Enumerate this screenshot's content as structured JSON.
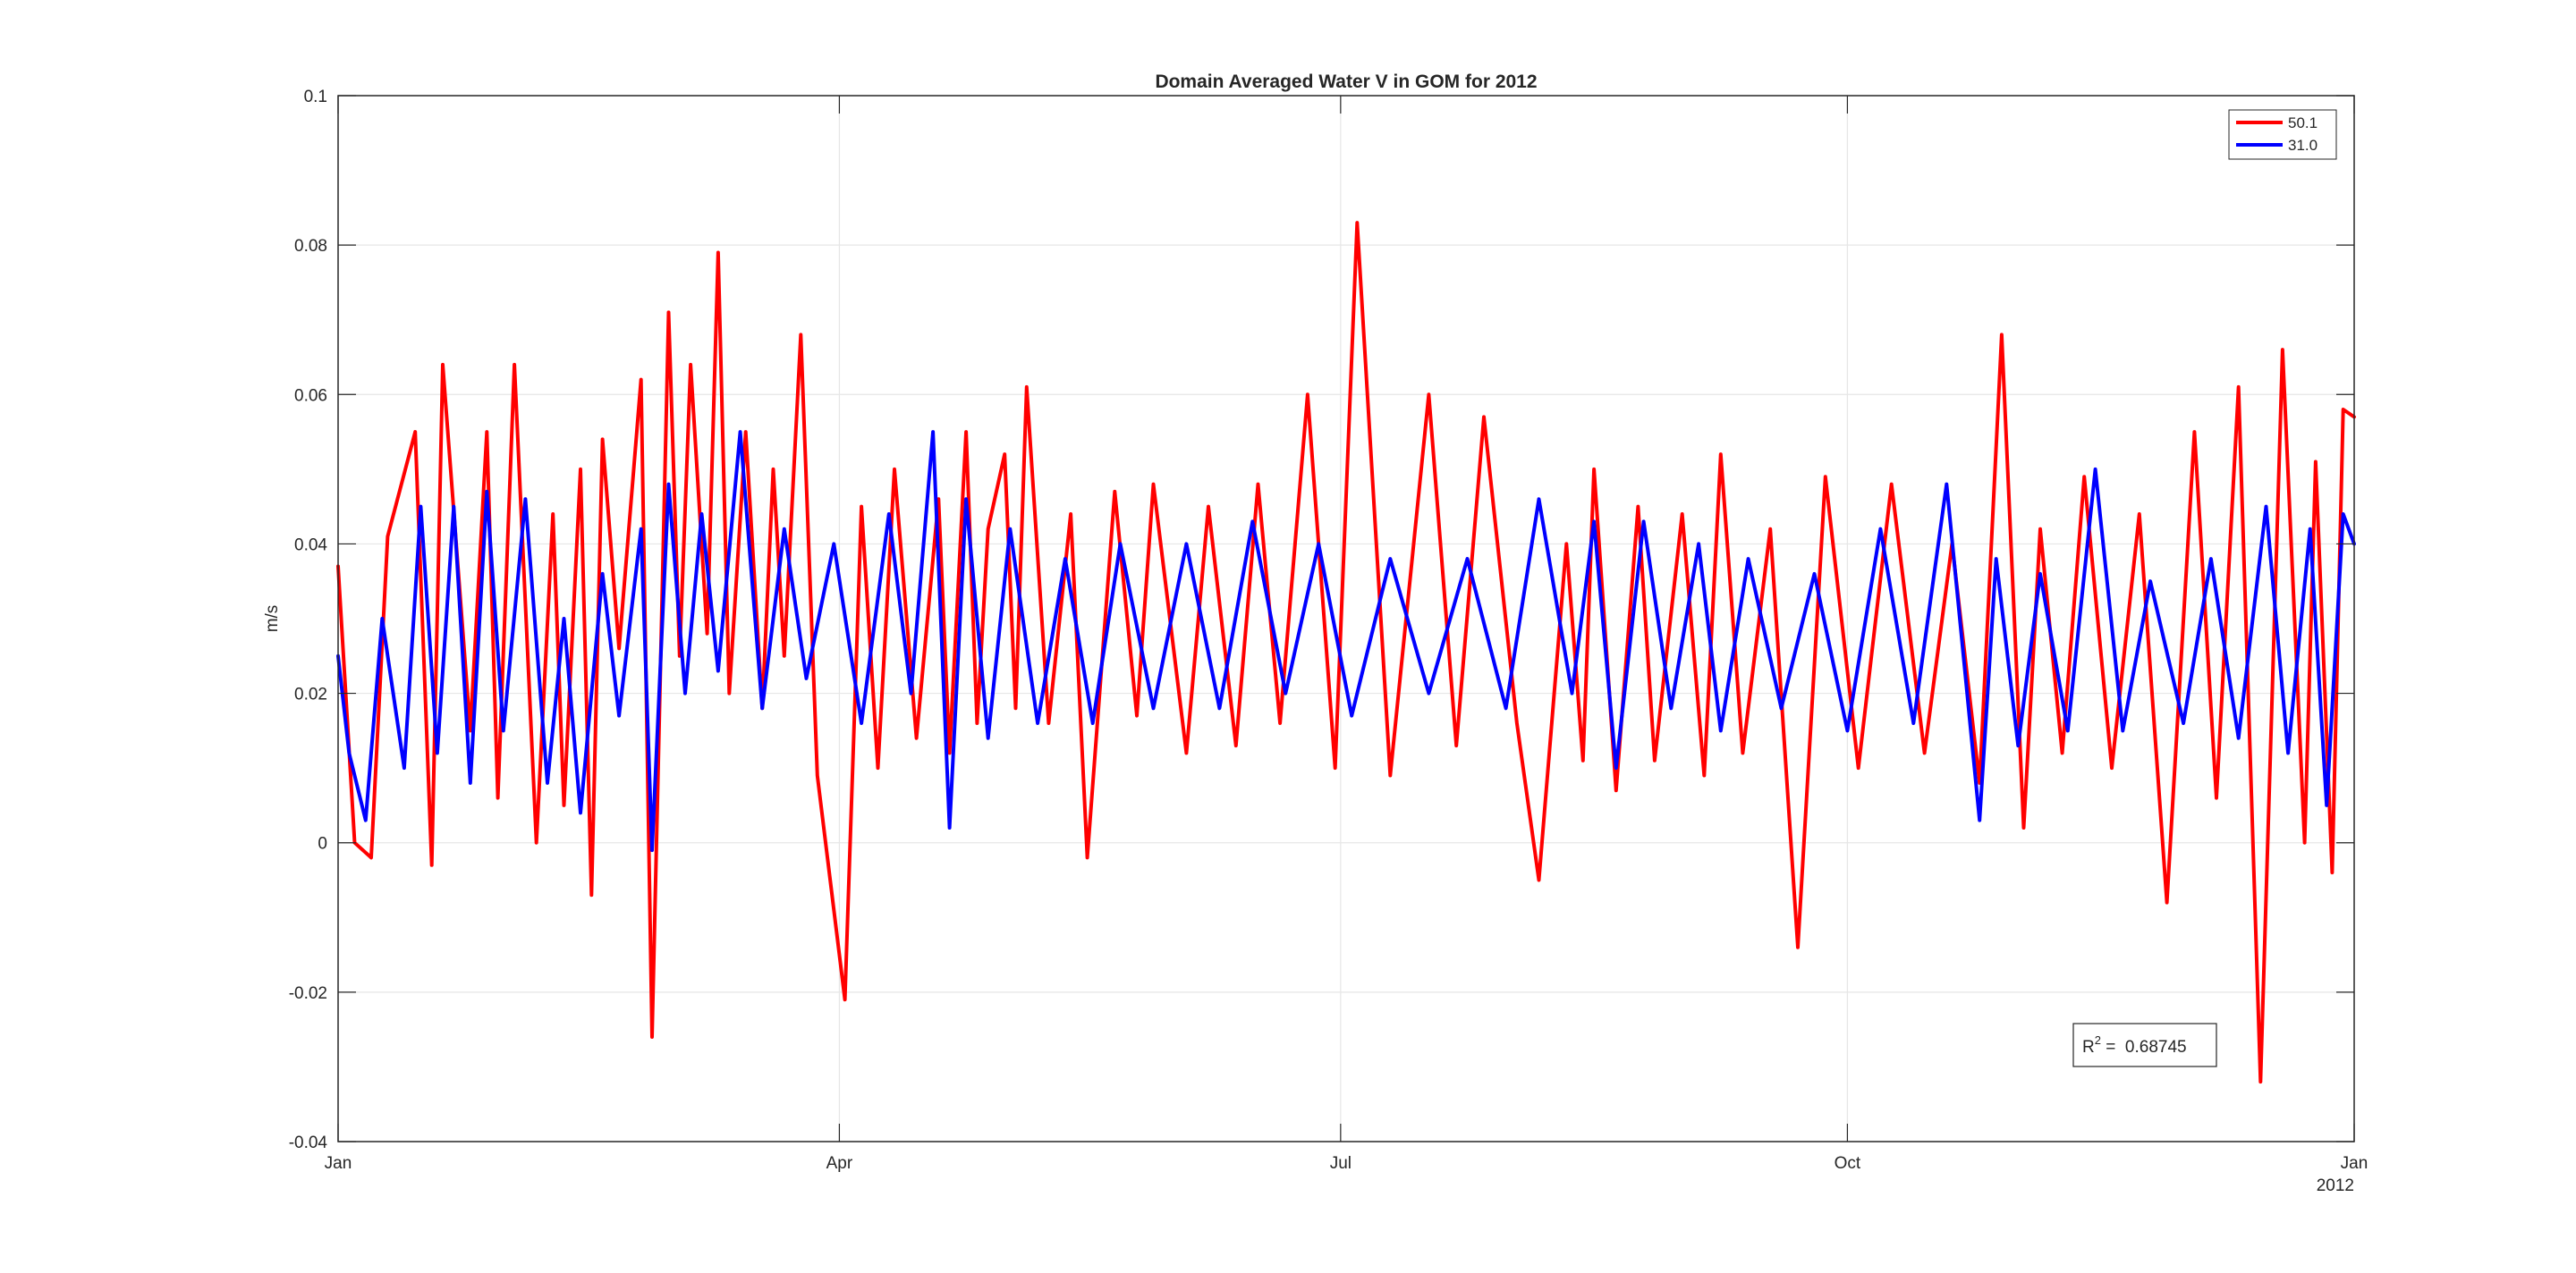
{
  "chart_data": {
    "type": "line",
    "title": "Domain Averaged Water V in GOM for 2012",
    "xlabel": "",
    "ylabel": "m/s",
    "x_start": "2012-01-01",
    "x_end": "2013-01-01",
    "xlim": [
      "2012-01-01",
      "2013-01-01"
    ],
    "ylim": [
      -0.04,
      0.1
    ],
    "yticks": [
      -0.04,
      -0.02,
      0,
      0.02,
      0.04,
      0.06,
      0.08,
      0.1
    ],
    "ytick_labels": [
      "-0.04",
      "-0.02",
      "0",
      "0.02",
      "0.04",
      "0.06",
      "0.08",
      "0.1"
    ],
    "xtick_labels": [
      "Jan",
      "Apr",
      "Jul",
      "Oct",
      "Jan"
    ],
    "xtick_dates": [
      "2012-01-01",
      "2012-04-01",
      "2012-07-01",
      "2012-10-01",
      "2013-01-01"
    ],
    "x_secondary_label": "2012",
    "grid": true,
    "legend_position": "top-right",
    "annotation": {
      "label": "R",
      "superscript": "2",
      "eq": " =  ",
      "value": "0.68745"
    },
    "series": [
      {
        "name": "50.1",
        "color": "#ff0000",
        "dates": [
          "2012-01-01",
          "2012-01-04",
          "2012-01-07",
          "2012-01-10",
          "2012-01-15",
          "2012-01-18",
          "2012-01-20",
          "2012-01-25",
          "2012-01-28",
          "2012-01-30",
          "2012-02-02",
          "2012-02-06",
          "2012-02-09",
          "2012-02-11",
          "2012-02-14",
          "2012-02-16",
          "2012-02-18",
          "2012-02-21",
          "2012-02-25",
          "2012-02-27",
          "2012-03-01",
          "2012-03-03",
          "2012-03-05",
          "2012-03-08",
          "2012-03-10",
          "2012-03-12",
          "2012-03-15",
          "2012-03-18",
          "2012-03-20",
          "2012-03-22",
          "2012-03-25",
          "2012-03-28",
          "2012-04-02",
          "2012-04-05",
          "2012-04-08",
          "2012-04-11",
          "2012-04-15",
          "2012-04-19",
          "2012-04-21",
          "2012-04-24",
          "2012-04-26",
          "2012-04-28",
          "2012-05-01",
          "2012-05-03",
          "2012-05-05",
          "2012-05-09",
          "2012-05-13",
          "2012-05-16",
          "2012-05-21",
          "2012-05-25",
          "2012-05-28",
          "2012-06-03",
          "2012-06-07",
          "2012-06-12",
          "2012-06-16",
          "2012-06-20",
          "2012-06-25",
          "2012-06-30",
          "2012-07-04",
          "2012-07-10",
          "2012-07-17",
          "2012-07-22",
          "2012-07-27",
          "2012-08-02",
          "2012-08-06",
          "2012-08-11",
          "2012-08-14",
          "2012-08-16",
          "2012-08-20",
          "2012-08-24",
          "2012-08-27",
          "2012-09-01",
          "2012-09-05",
          "2012-09-08",
          "2012-09-12",
          "2012-09-17",
          "2012-09-22",
          "2012-09-27",
          "2012-10-03",
          "2012-10-09",
          "2012-10-15",
          "2012-10-20",
          "2012-10-25",
          "2012-10-29",
          "2012-11-02",
          "2012-11-05",
          "2012-11-09",
          "2012-11-13",
          "2012-11-18",
          "2012-11-23",
          "2012-11-28",
          "2012-12-03",
          "2012-12-07",
          "2012-12-11",
          "2012-12-15",
          "2012-12-19",
          "2012-12-23",
          "2012-12-25",
          "2012-12-28",
          "2012-12-30",
          "2013-01-01"
        ],
        "values": [
          0.037,
          0.0,
          -0.002,
          0.041,
          0.055,
          -0.003,
          0.064,
          0.015,
          0.055,
          0.006,
          0.064,
          0.0,
          0.044,
          0.005,
          0.05,
          -0.007,
          0.054,
          0.026,
          0.062,
          -0.026,
          0.071,
          0.025,
          0.064,
          0.028,
          0.079,
          0.02,
          0.055,
          0.018,
          0.05,
          0.025,
          0.068,
          0.009,
          -0.021,
          0.045,
          0.01,
          0.05,
          0.014,
          0.046,
          0.012,
          0.055,
          0.016,
          0.042,
          0.052,
          0.018,
          0.061,
          0.016,
          0.044,
          -0.002,
          0.047,
          0.017,
          0.048,
          0.012,
          0.045,
          0.013,
          0.048,
          0.016,
          0.06,
          0.01,
          0.083,
          0.009,
          0.06,
          0.013,
          0.057,
          0.016,
          -0.005,
          0.04,
          0.011,
          0.05,
          0.007,
          0.045,
          0.011,
          0.044,
          0.009,
          0.052,
          0.012,
          0.042,
          -0.014,
          0.049,
          0.01,
          0.048,
          0.012,
          0.04,
          0.008,
          0.068,
          0.002,
          0.042,
          0.012,
          0.049,
          0.01,
          0.044,
          -0.008,
          0.055,
          0.006,
          0.061,
          -0.032,
          0.066,
          0.0,
          0.051,
          -0.004,
          0.058,
          0.057
        ]
      },
      {
        "name": "31.0",
        "color": "#0000ff",
        "dates": [
          "2012-01-01",
          "2012-01-03",
          "2012-01-06",
          "2012-01-09",
          "2012-01-13",
          "2012-01-16",
          "2012-01-19",
          "2012-01-22",
          "2012-01-25",
          "2012-01-28",
          "2012-01-31",
          "2012-02-04",
          "2012-02-08",
          "2012-02-11",
          "2012-02-14",
          "2012-02-18",
          "2012-02-21",
          "2012-02-25",
          "2012-02-27",
          "2012-03-01",
          "2012-03-04",
          "2012-03-07",
          "2012-03-10",
          "2012-03-14",
          "2012-03-18",
          "2012-03-22",
          "2012-03-26",
          "2012-03-31",
          "2012-04-05",
          "2012-04-10",
          "2012-04-14",
          "2012-04-18",
          "2012-04-21",
          "2012-04-24",
          "2012-04-28",
          "2012-05-02",
          "2012-05-07",
          "2012-05-12",
          "2012-05-17",
          "2012-05-22",
          "2012-05-28",
          "2012-06-03",
          "2012-06-09",
          "2012-06-15",
          "2012-06-21",
          "2012-06-27",
          "2012-07-03",
          "2012-07-10",
          "2012-07-17",
          "2012-07-24",
          "2012-07-31",
          "2012-08-06",
          "2012-08-12",
          "2012-08-16",
          "2012-08-20",
          "2012-08-25",
          "2012-08-30",
          "2012-09-04",
          "2012-09-08",
          "2012-09-13",
          "2012-09-19",
          "2012-09-25",
          "2012-10-01",
          "2012-10-07",
          "2012-10-13",
          "2012-10-19",
          "2012-10-25",
          "2012-10-28",
          "2012-11-01",
          "2012-11-05",
          "2012-11-10",
          "2012-11-15",
          "2012-11-20",
          "2012-11-25",
          "2012-12-01",
          "2012-12-06",
          "2012-12-11",
          "2012-12-16",
          "2012-12-20",
          "2012-12-24",
          "2012-12-27",
          "2012-12-30",
          "2013-01-01"
        ],
        "values": [
          0.025,
          0.012,
          0.003,
          0.03,
          0.01,
          0.045,
          0.012,
          0.045,
          0.008,
          0.047,
          0.015,
          0.046,
          0.008,
          0.03,
          0.004,
          0.036,
          0.017,
          0.042,
          -0.001,
          0.048,
          0.02,
          0.044,
          0.023,
          0.055,
          0.018,
          0.042,
          0.022,
          0.04,
          0.016,
          0.044,
          0.02,
          0.055,
          0.002,
          0.046,
          0.014,
          0.042,
          0.016,
          0.038,
          0.016,
          0.04,
          0.018,
          0.04,
          0.018,
          0.043,
          0.02,
          0.04,
          0.017,
          0.038,
          0.02,
          0.038,
          0.018,
          0.046,
          0.02,
          0.043,
          0.01,
          0.043,
          0.018,
          0.04,
          0.015,
          0.038,
          0.018,
          0.036,
          0.015,
          0.042,
          0.016,
          0.048,
          0.003,
          0.038,
          0.013,
          0.036,
          0.015,
          0.05,
          0.015,
          0.035,
          0.016,
          0.038,
          0.014,
          0.045,
          0.012,
          0.042,
          0.005,
          0.044,
          0.04
        ]
      }
    ]
  }
}
